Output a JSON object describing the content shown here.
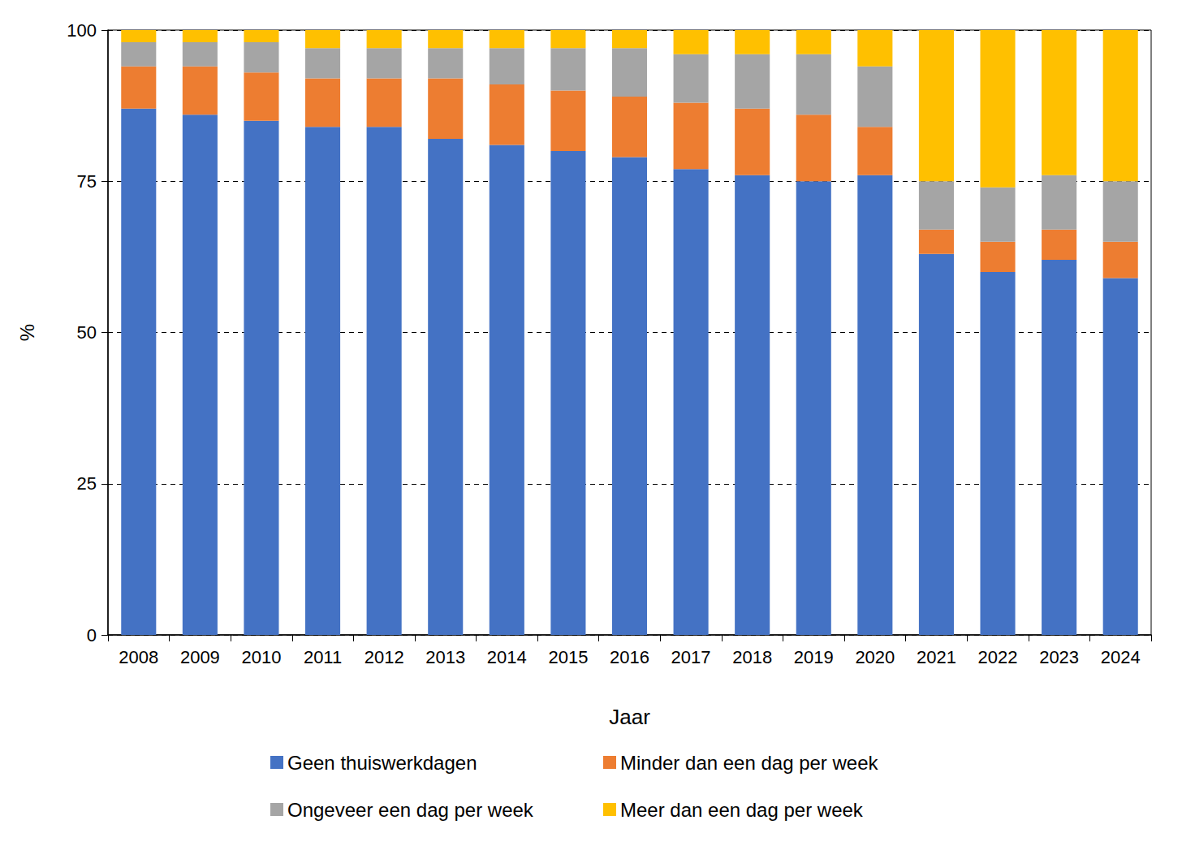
{
  "chart_data": {
    "type": "bar",
    "stacked": true,
    "grid": true,
    "legend": "bottom",
    "x_label": "Jaar",
    "y_label": "%",
    "categories": [
      "2008",
      "2009",
      "2010",
      "2011",
      "2012",
      "2013",
      "2014",
      "2015",
      "2016",
      "2017",
      "2018",
      "2019",
      "2020",
      "2021",
      "2022",
      "2023",
      "2024"
    ],
    "ylim": [
      0,
      100
    ],
    "yticks": [
      0,
      25,
      50,
      75,
      100
    ],
    "series": [
      {
        "name": "Geen thuiswerkdagen",
        "color": "#4472c4",
        "values": [
          87,
          86,
          85,
          84,
          84,
          82,
          81,
          80,
          79,
          77,
          76,
          75,
          76,
          63,
          60,
          62,
          59
        ]
      },
      {
        "name": "Minder dan een dag per week",
        "color": "#ed7d31",
        "values": [
          7,
          8,
          8,
          8,
          8,
          10,
          10,
          10,
          10,
          11,
          11,
          11,
          8,
          4,
          5,
          5,
          6
        ]
      },
      {
        "name": "Ongeveer een dag per week",
        "color": "#a5a5a5",
        "values": [
          4,
          4,
          5,
          5,
          5,
          5,
          6,
          7,
          8,
          8,
          9,
          10,
          10,
          8,
          9,
          9,
          10
        ]
      },
      {
        "name": "Meer dan een dag per week",
        "color": "#ffc000",
        "values": [
          2,
          2,
          2,
          3,
          3,
          3,
          3,
          3,
          3,
          4,
          4,
          4,
          6,
          25,
          26,
          24,
          25
        ]
      }
    ]
  }
}
